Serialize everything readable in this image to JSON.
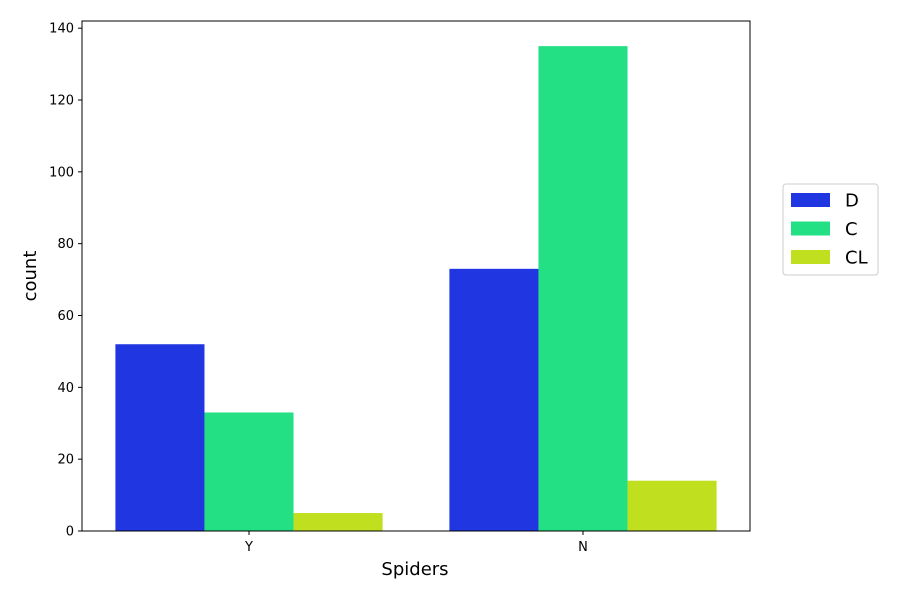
{
  "chart_data": {
    "type": "bar",
    "title": "",
    "xlabel": "Spiders",
    "ylabel": "count",
    "categories": [
      "Y",
      "N"
    ],
    "ylim": [
      0,
      142
    ],
    "y_ticks": [
      0,
      20,
      40,
      60,
      80,
      100,
      120,
      140
    ],
    "grid": false,
    "legend_position": "outside-right",
    "series": [
      {
        "name": "D",
        "color": "#1f36e0",
        "values": [
          52,
          73
        ]
      },
      {
        "name": "C",
        "color": "#22e083",
        "values": [
          33,
          135
        ]
      },
      {
        "name": "CL",
        "color": "#c0e01f",
        "values": [
          5,
          14
        ]
      }
    ]
  }
}
